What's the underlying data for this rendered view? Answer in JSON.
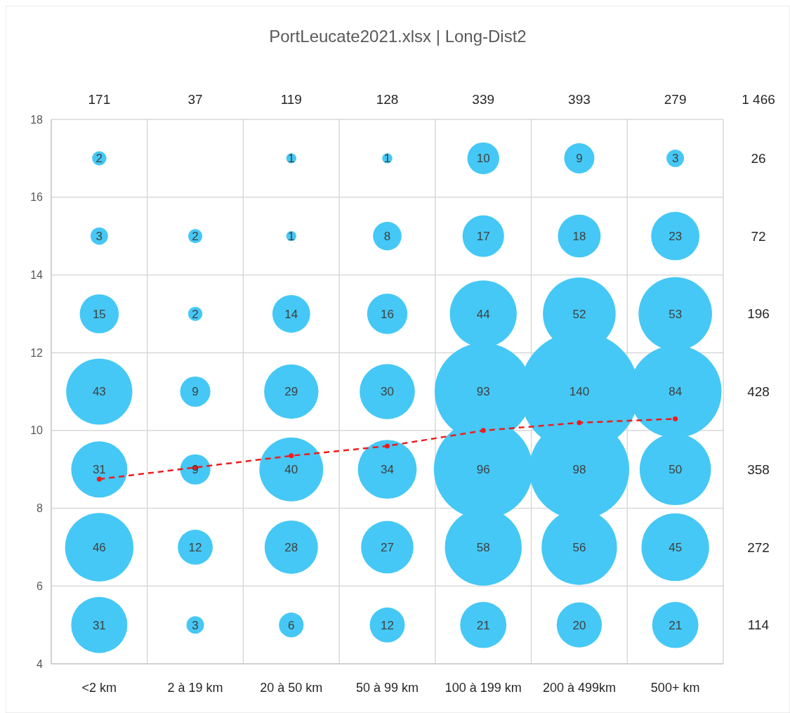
{
  "chart_data": {
    "type": "bubble",
    "title": "PortLeucate2021.xlsx | Long-Dist2",
    "categories": [
      "<2 km",
      "2 à 19 km",
      "20 à 50 km",
      "50 à 99 km",
      "100 à 199 km",
      "200 à 499km",
      "500+ km"
    ],
    "ylim": [
      4,
      18
    ],
    "yticks": [
      4,
      6,
      8,
      10,
      12,
      14,
      16,
      18
    ],
    "grid": true,
    "series": [
      {
        "color": "#45c8f5",
        "values": [
          17,
          null,
          17,
          17,
          17,
          17,
          17
        ],
        "sizes": [
          2,
          null,
          1,
          1,
          10,
          9,
          3
        ],
        "value_labels": [
          "2",
          null,
          "1",
          "1",
          "10",
          "9",
          "3"
        ]
      },
      {
        "color": "#45c8f5",
        "values": [
          15,
          15,
          15,
          15,
          15,
          15,
          15
        ],
        "sizes": [
          3,
          2,
          1,
          8,
          17,
          18,
          23
        ],
        "value_labels": [
          "3",
          "2",
          "1",
          "8",
          "17",
          "18",
          "23"
        ]
      },
      {
        "color": "#45c8f5",
        "values": [
          13,
          13,
          13,
          13,
          13,
          13,
          13
        ],
        "sizes": [
          15,
          2,
          14,
          16,
          44,
          52,
          53
        ],
        "value_labels": [
          "15",
          "2",
          "14",
          "16",
          "44",
          "52",
          "53"
        ]
      },
      {
        "color": "#45c8f5",
        "values": [
          11,
          11,
          11,
          11,
          11,
          11,
          11
        ],
        "sizes": [
          43,
          9,
          29,
          30,
          93,
          140,
          84
        ],
        "value_labels": [
          "43",
          "9",
          "29",
          "30",
          "93",
          "140",
          "84"
        ]
      },
      {
        "color": "#45c8f5",
        "values": [
          9,
          9,
          9,
          9,
          9,
          9,
          9
        ],
        "sizes": [
          31,
          9,
          40,
          34,
          96,
          98,
          50
        ],
        "value_labels": [
          "31",
          "9",
          "40",
          "34",
          "96",
          "98",
          "50"
        ]
      },
      {
        "color": "#45c8f5",
        "values": [
          7,
          7,
          7,
          7,
          7,
          7,
          7
        ],
        "sizes": [
          46,
          12,
          28,
          27,
          58,
          56,
          45
        ],
        "value_labels": [
          "46",
          "12",
          "28",
          "27",
          "58",
          "56",
          "45"
        ]
      },
      {
        "color": "#45c8f5",
        "values": [
          5,
          5,
          5,
          5,
          5,
          5,
          5
        ],
        "sizes": [
          31,
          3,
          6,
          12,
          21,
          20,
          21
        ],
        "value_labels": [
          "31",
          "3",
          "6",
          "12",
          "21",
          "20",
          "21"
        ]
      },
      {
        "type": "line",
        "color": "#ee1c1c",
        "marker": "circle",
        "line_style": "dashed",
        "values": [
          8.75,
          9.05,
          9.35,
          9.6,
          10.0,
          10.2,
          10.3
        ]
      }
    ],
    "annotations": [
      "171",
      "37",
      "119",
      "128",
      "339",
      "393",
      "279",
      "1 466",
      "26",
      "72",
      "196",
      "428",
      "358",
      "272",
      "114"
    ]
  }
}
